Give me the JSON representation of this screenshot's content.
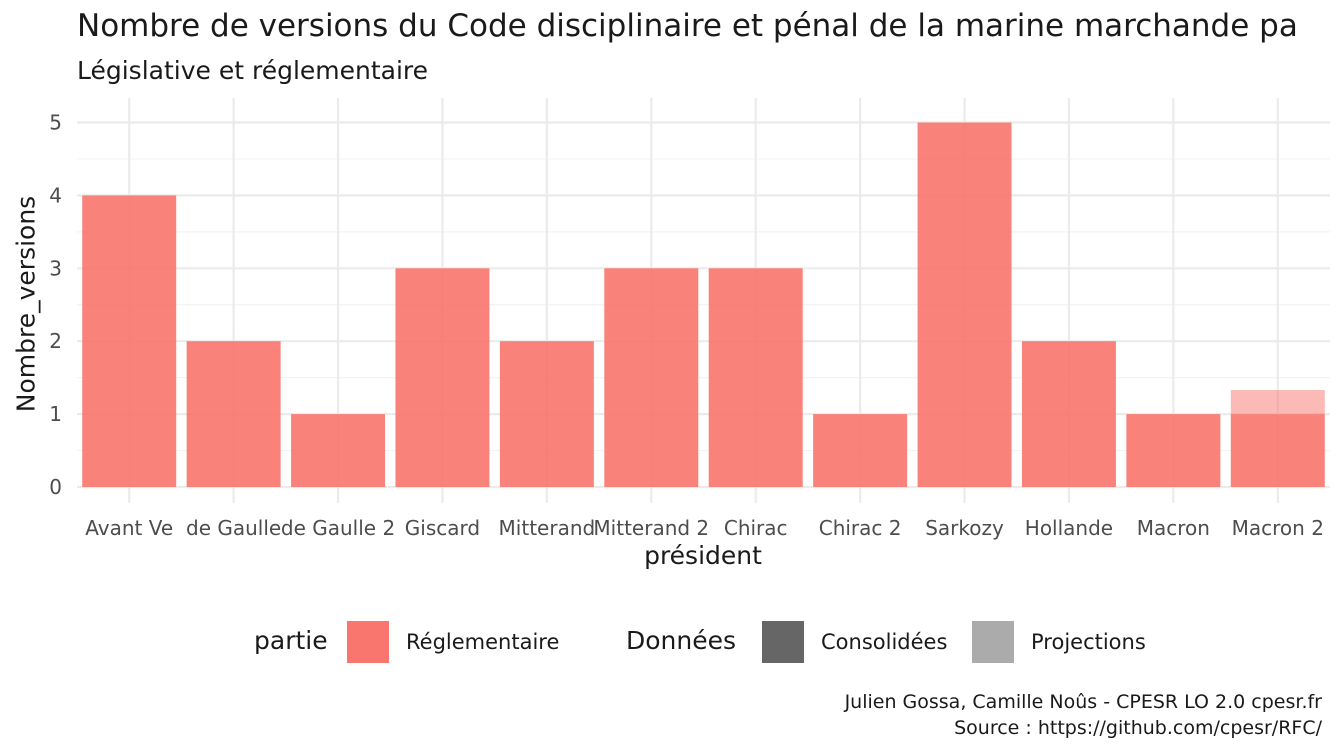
{
  "chart_data": {
    "type": "bar",
    "title": "Nombre de versions du Code disciplinaire et pénal de la marine marchande pa",
    "subtitle": "Législative et réglementaire",
    "xlabel": "président",
    "ylabel": "Nombre_versions",
    "categories": [
      "Avant Ve",
      "de Gaulle",
      "de Gaulle 2",
      "Giscard",
      "Mitterand",
      "Mitterand 2",
      "Chirac",
      "Chirac 2",
      "Sarkozy",
      "Hollande",
      "Macron",
      "Macron 2"
    ],
    "series": [
      {
        "name": "Réglementaire",
        "legend_group": "partie",
        "donnees": "Consolidées",
        "values": [
          4,
          2,
          1,
          3,
          2,
          3,
          3,
          1,
          5,
          2,
          1,
          1
        ]
      },
      {
        "name": "Réglementaire",
        "legend_group": "partie",
        "donnees": "Projections",
        "values": [
          0,
          0,
          0,
          0,
          0,
          0,
          0,
          0,
          0,
          0,
          0,
          0.33
        ]
      }
    ],
    "ylim": [
      0,
      5.2
    ],
    "yticks": [
      0,
      1,
      2,
      3,
      4,
      5
    ],
    "grid": true,
    "legend_position": "bottom",
    "legend": {
      "partie_title": "partie",
      "partie_items": [
        {
          "label": "Réglementaire",
          "color": "#F8766D"
        }
      ],
      "donnees_title": "Données",
      "donnees_items": [
        {
          "label": "Consolidées",
          "color": "#666666"
        },
        {
          "label": "Projections",
          "color": "#ABABAB"
        }
      ]
    },
    "colors": {
      "bar": "#F8766D",
      "grid": "#EBEBEB",
      "axis_text": "#4D4D4D"
    },
    "caption_lines": [
      "Julien Gossa, Camille Noûs - CPESR LO 2.0 cpesr.fr",
      "Source : https://github.com/cpesr/RFC/"
    ]
  }
}
